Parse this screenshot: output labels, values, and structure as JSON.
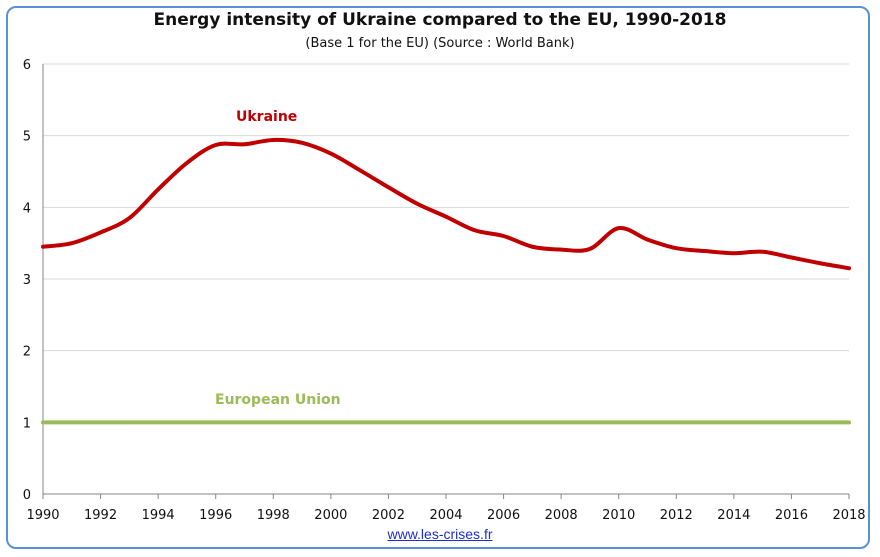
{
  "chart_data": {
    "type": "line",
    "title": "Energy intensity of Ukraine compared to the EU, 1990-2018",
    "subtitle": "(Base 1 for the EU) (Source : World Bank)",
    "xlim": [
      1990,
      2018
    ],
    "ylim": [
      0,
      6
    ],
    "x_ticks": [
      "1990",
      "1992",
      "1994",
      "1996",
      "1998",
      "2000",
      "2002",
      "2004",
      "2006",
      "2008",
      "2010",
      "2012",
      "2014",
      "2016",
      "2018"
    ],
    "y_ticks": [
      "0",
      "1",
      "2",
      "3",
      "4",
      "5",
      "6"
    ],
    "grid": true,
    "series": [
      {
        "name": "Ukraine",
        "color": "#c00000",
        "x": [
          1990,
          1991,
          1992,
          1993,
          1994,
          1995,
          1996,
          1997,
          1998,
          1999,
          2000,
          2001,
          2002,
          2003,
          2004,
          2005,
          2006,
          2007,
          2008,
          2009,
          2010,
          2011,
          2012,
          2013,
          2014,
          2015,
          2016,
          2017,
          2018
        ],
        "values": [
          3.45,
          3.5,
          3.65,
          3.85,
          4.25,
          4.62,
          4.87,
          4.88,
          4.94,
          4.9,
          4.75,
          4.52,
          4.28,
          4.05,
          3.87,
          3.68,
          3.6,
          3.45,
          3.41,
          3.42,
          3.71,
          3.55,
          3.43,
          3.39,
          3.36,
          3.38,
          3.3,
          3.22,
          3.15
        ]
      },
      {
        "name": "European Union",
        "color": "#9bbb59",
        "x": [
          1990,
          2018
        ],
        "values": [
          1,
          1
        ]
      }
    ]
  },
  "footer": {
    "source_link": "www.les-crises.fr"
  }
}
